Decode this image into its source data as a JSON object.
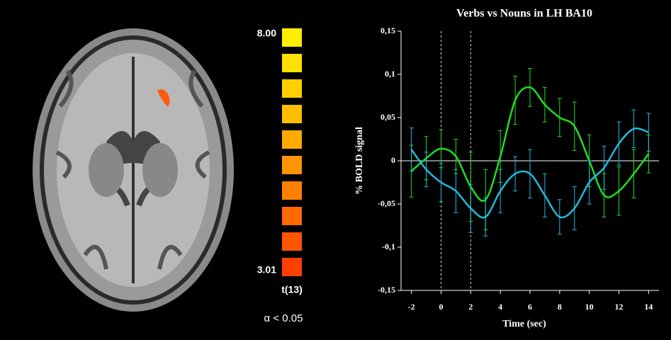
{
  "colorbar": {
    "max_label": "8.00",
    "min_label": "3.01",
    "stat_label": "t(13)",
    "alpha_label": "α < 0.05"
  },
  "chart_data": {
    "type": "line",
    "title": "Verbs vs Nouns in LH BA10",
    "x_label": "Time (sec)",
    "y_label": "% BOLD signal",
    "x": [
      -2,
      -1,
      0,
      1,
      2,
      3,
      4,
      5,
      6,
      7,
      8,
      9,
      10,
      11,
      12,
      13,
      14
    ],
    "series": [
      {
        "color": "#22dd22",
        "values": [
          -0.012,
          0.003,
          0.014,
          0.005,
          -0.03,
          -0.045,
          0.005,
          0.07,
          0.085,
          0.065,
          0.05,
          0.04,
          0.0,
          -0.04,
          -0.035,
          -0.015,
          0.008
        ],
        "errors": [
          0.03,
          0.025,
          0.022,
          0.02,
          0.04,
          0.035,
          0.03,
          0.028,
          0.022,
          0.02,
          0.022,
          0.028,
          0.03,
          0.025,
          0.028,
          0.028,
          0.022
        ]
      },
      {
        "color": "#22bbdd",
        "values": [
          0.013,
          -0.01,
          -0.025,
          -0.035,
          -0.055,
          -0.065,
          -0.035,
          -0.015,
          -0.015,
          -0.04,
          -0.065,
          -0.055,
          -0.025,
          -0.008,
          0.02,
          0.037,
          0.033
        ],
        "errors": [
          0.025,
          0.02,
          0.022,
          0.025,
          0.028,
          0.022,
          0.025,
          0.02,
          0.028,
          0.025,
          0.02,
          0.025,
          0.025,
          0.025,
          0.025,
          0.022,
          0.022
        ]
      }
    ],
    "vlines": [
      0,
      2
    ],
    "xlim": [
      -2.7,
      14.7
    ],
    "xticks": [
      -2,
      0,
      2,
      4,
      6,
      8,
      10,
      12,
      14
    ],
    "ylim": [
      -0.15,
      0.15
    ],
    "yticks": [
      {
        "value": -0.15,
        "label": "-0,15"
      },
      {
        "value": -0.1,
        "label": "-0,1"
      },
      {
        "value": -0.05,
        "label": "-0,05"
      },
      0,
      {
        "value": 0.05,
        "label": "0,05"
      },
      {
        "value": 0.1,
        "label": "0,1"
      },
      {
        "value": 0.15,
        "label": "0,15"
      }
    ]
  }
}
